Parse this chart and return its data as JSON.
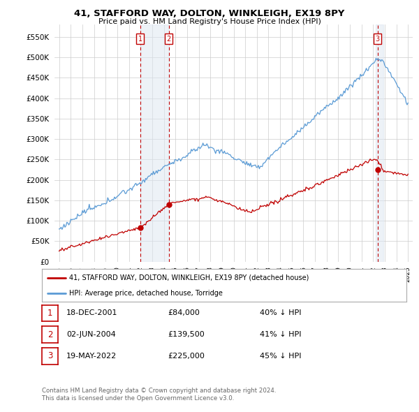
{
  "title": "41, STAFFORD WAY, DOLTON, WINKLEIGH, EX19 8PY",
  "subtitle": "Price paid vs. HM Land Registry's House Price Index (HPI)",
  "ytick_vals": [
    0,
    50000,
    100000,
    150000,
    200000,
    250000,
    300000,
    350000,
    400000,
    450000,
    500000,
    550000
  ],
  "legend_line1": "41, STAFFORD WAY, DOLTON, WINKLEIGH, EX19 8PY (detached house)",
  "legend_line2": "HPI: Average price, detached house, Torridge",
  "sale1_date": "18-DEC-2001",
  "sale1_price": 84000,
  "sale1_hpi": "40% ↓ HPI",
  "sale1_x": 2001.96,
  "sale2_date": "02-JUN-2004",
  "sale2_price": 139500,
  "sale2_hpi": "41% ↓ HPI",
  "sale2_x": 2004.42,
  "sale3_date": "19-MAY-2022",
  "sale3_price": 225000,
  "sale3_hpi": "45% ↓ HPI",
  "sale3_x": 2022.38,
  "footnote1": "Contains HM Land Registry data © Crown copyright and database right 2024.",
  "footnote2": "This data is licensed under the Open Government Licence v3.0.",
  "hpi_color": "#5b9bd5",
  "price_color": "#c00000",
  "vline_color": "#c00000",
  "vline_fill": "#dce6f1",
  "background_color": "#ffffff",
  "grid_color": "#cccccc"
}
